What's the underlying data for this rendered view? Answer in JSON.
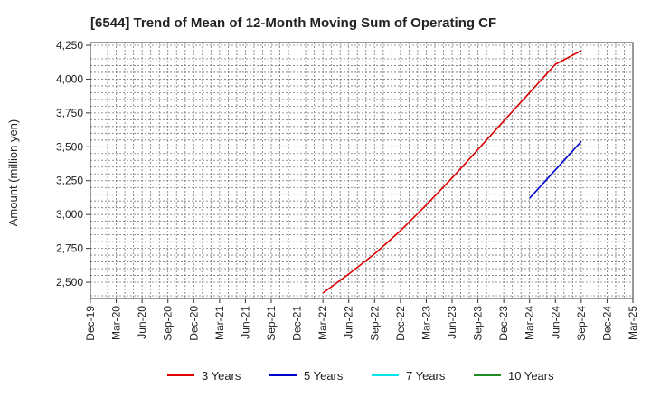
{
  "chart_data": {
    "type": "line",
    "title": "[6544]  Trend of Mean of 12-Month Moving Sum of Operating CF",
    "xlabel": "",
    "ylabel": "Amount (million yen)",
    "ylim": [
      2380,
      4270
    ],
    "yticks": [
      2500,
      2750,
      3000,
      3250,
      3500,
      3750,
      4000,
      4250
    ],
    "yticklabels": [
      "2,500",
      "2,750",
      "3,000",
      "3,250",
      "3,500",
      "3,750",
      "4,000",
      "4,250"
    ],
    "xticks": [
      "Dec-19",
      "Mar-20",
      "Jun-20",
      "Sep-20",
      "Dec-20",
      "Mar-21",
      "Jun-21",
      "Sep-21",
      "Dec-21",
      "Mar-22",
      "Jun-22",
      "Sep-22",
      "Dec-22",
      "Mar-23",
      "Jun-23",
      "Sep-23",
      "Dec-23",
      "Mar-24",
      "Jun-24",
      "Sep-24",
      "Dec-24",
      "Mar-25"
    ],
    "xlim": [
      "2019-12",
      "2025-03"
    ],
    "grid": true,
    "legend_position": "bottom",
    "series": [
      {
        "name": "3 Years",
        "color": "#dd0000",
        "points": [
          [
            "2022-03",
            2420
          ],
          [
            "2022-06",
            2560
          ],
          [
            "2022-09",
            2710
          ],
          [
            "2022-12",
            2880
          ],
          [
            "2023-03",
            3070
          ],
          [
            "2023-06",
            3270
          ],
          [
            "2023-09",
            3480
          ],
          [
            "2023-12",
            3690
          ],
          [
            "2024-03",
            3900
          ],
          [
            "2024-06",
            4110
          ],
          [
            "2024-09",
            4210
          ]
        ]
      },
      {
        "name": "5 Years",
        "color": "#0000cc",
        "points": [
          [
            "2024-03",
            3120
          ],
          [
            "2024-09",
            3540
          ]
        ]
      },
      {
        "name": "7 Years",
        "color": "#00e5ee",
        "points": []
      },
      {
        "name": "10 Years",
        "color": "#228b22",
        "points": []
      }
    ]
  }
}
